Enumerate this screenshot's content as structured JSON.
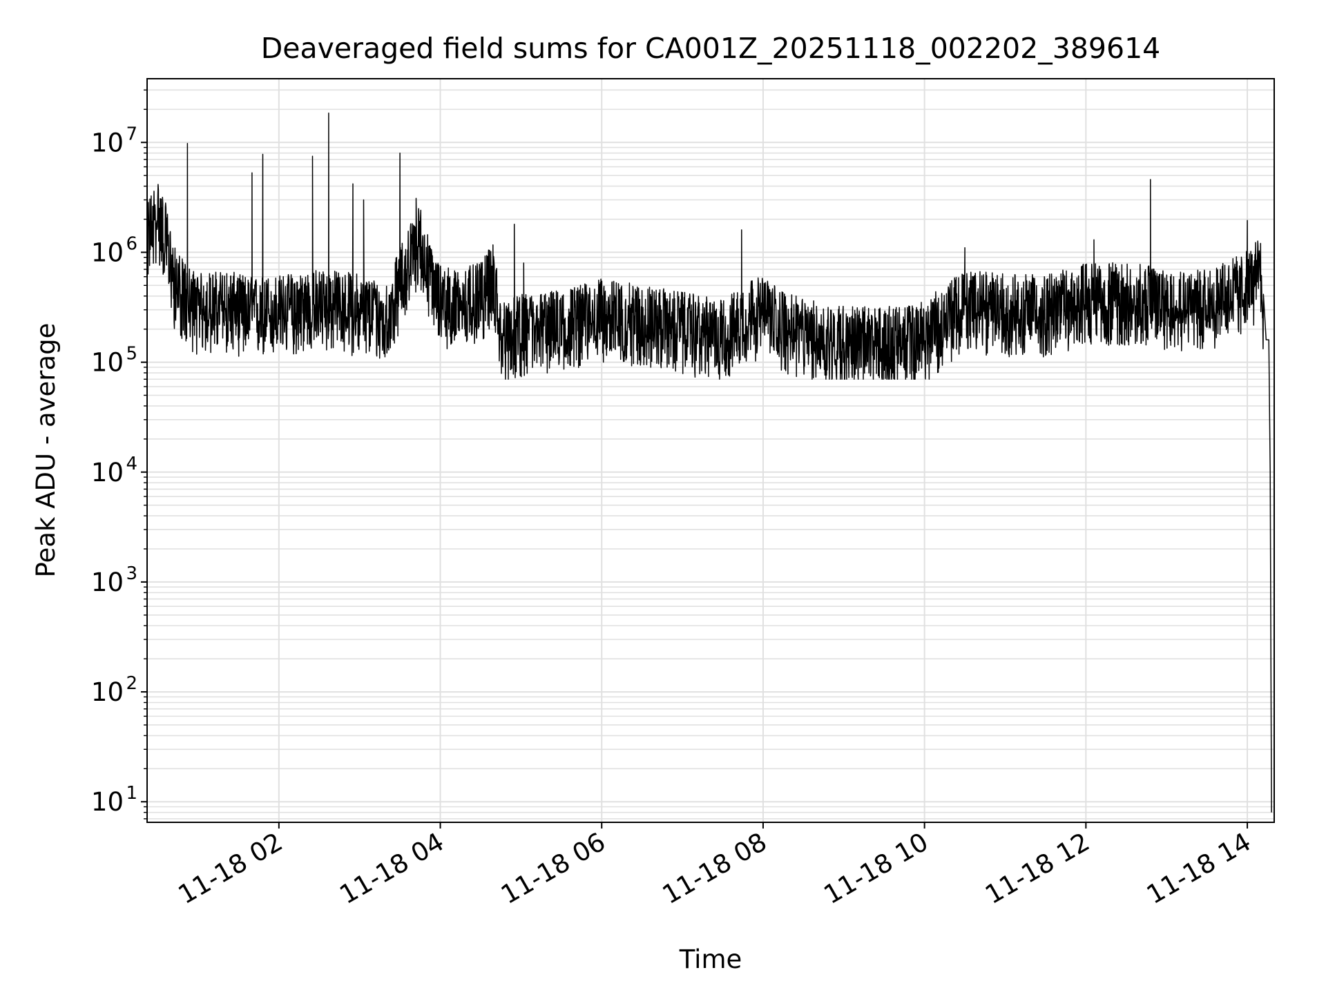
{
  "chart_data": {
    "type": "line",
    "title": "Deaveraged field sums for CA001Z_20251118_002202_389614",
    "xlabel": "Time",
    "ylabel": "Peak ADU - average",
    "yscale": "log",
    "ylim": [
      6.5,
      38000000
    ],
    "xlim": [
      "2025-11-18 00:22",
      "2025-11-18 14:20"
    ],
    "grid": true,
    "legend": "none",
    "line_color": "#000000",
    "grid_color": "#e0e0e0",
    "x_ticks": [
      {
        "value": "2025-11-18 02:00",
        "label": "11-18 02"
      },
      {
        "value": "2025-11-18 04:00",
        "label": "11-18 04"
      },
      {
        "value": "2025-11-18 06:00",
        "label": "11-18 06"
      },
      {
        "value": "2025-11-18 08:00",
        "label": "11-18 08"
      },
      {
        "value": "2025-11-18 10:00",
        "label": "11-18 10"
      },
      {
        "value": "2025-11-18 12:00",
        "label": "11-18 12"
      },
      {
        "value": "2025-11-18 14:00",
        "label": "11-18 14"
      }
    ],
    "y_ticks": [
      {
        "value": 10,
        "base": "10",
        "exp": "1"
      },
      {
        "value": 100,
        "base": "10",
        "exp": "2"
      },
      {
        "value": 1000,
        "base": "10",
        "exp": "3"
      },
      {
        "value": 10000,
        "base": "10",
        "exp": "4"
      },
      {
        "value": 100000,
        "base": "10",
        "exp": "5"
      },
      {
        "value": 1000000,
        "base": "10",
        "exp": "6"
      },
      {
        "value": 10000000,
        "base": "10",
        "exp": "7"
      }
    ],
    "series": [
      {
        "points": [
          [
            "2025-11-18 00:22",
            1300000
          ],
          [
            "2025-11-18 00:30",
            2000000
          ],
          [
            "2025-11-18 00:36",
            1200000
          ],
          [
            "2025-11-18 00:42",
            500000
          ],
          [
            "2025-11-18 00:50",
            350000
          ],
          [
            "2025-11-18 01:00",
            280000
          ],
          [
            "2025-11-18 01:20",
            300000
          ],
          [
            "2025-11-18 01:40",
            260000
          ],
          [
            "2025-11-18 02:00",
            270000
          ],
          [
            "2025-11-18 02:30",
            310000
          ],
          [
            "2025-11-18 03:00",
            280000
          ],
          [
            "2025-11-18 03:20",
            230000
          ],
          [
            "2025-11-18 03:35",
            700000
          ],
          [
            "2025-11-18 03:45",
            1200000
          ],
          [
            "2025-11-18 03:55",
            400000
          ],
          [
            "2025-11-18 04:10",
            300000
          ],
          [
            "2025-11-18 04:30",
            350000
          ],
          [
            "2025-11-18 04:40",
            550000
          ],
          [
            "2025-11-18 04:45",
            150000
          ],
          [
            "2025-11-18 05:00",
            180000
          ],
          [
            "2025-11-18 05:30",
            200000
          ],
          [
            "2025-11-18 06:00",
            250000
          ],
          [
            "2025-11-18 06:30",
            220000
          ],
          [
            "2025-11-18 07:00",
            190000
          ],
          [
            "2025-11-18 07:30",
            160000
          ],
          [
            "2025-11-18 07:50",
            250000
          ],
          [
            "2025-11-18 08:00",
            260000
          ],
          [
            "2025-11-18 08:20",
            180000
          ],
          [
            "2025-11-18 08:45",
            150000
          ],
          [
            "2025-11-18 09:15",
            140000
          ],
          [
            "2025-11-18 09:45",
            140000
          ],
          [
            "2025-11-18 10:00",
            160000
          ],
          [
            "2025-11-18 10:30",
            300000
          ],
          [
            "2025-11-18 11:00",
            280000
          ],
          [
            "2025-11-18 11:30",
            270000
          ],
          [
            "2025-11-18 12:00",
            350000
          ],
          [
            "2025-11-18 12:30",
            350000
          ],
          [
            "2025-11-18 13:00",
            320000
          ],
          [
            "2025-11-18 13:30",
            300000
          ],
          [
            "2025-11-18 14:00",
            450000
          ],
          [
            "2025-11-18 14:10",
            600000
          ],
          [
            "2025-11-18 14:12",
            280000
          ],
          [
            "2025-11-18 14:14",
            160000
          ],
          [
            "2025-11-18 14:16",
            160000
          ],
          [
            "2025-11-18 14:17",
            10000
          ],
          [
            "2025-11-18 14:18",
            8
          ]
        ],
        "spikes": [
          [
            "2025-11-18 00:52",
            9800000
          ],
          [
            "2025-11-18 01:40",
            5300000
          ],
          [
            "2025-11-18 01:48",
            7800000
          ],
          [
            "2025-11-18 02:25",
            7500000
          ],
          [
            "2025-11-18 02:37",
            18500000
          ],
          [
            "2025-11-18 02:55",
            4200000
          ],
          [
            "2025-11-18 03:03",
            3000000
          ],
          [
            "2025-11-18 03:30",
            8000000
          ],
          [
            "2025-11-18 03:42",
            3100000
          ],
          [
            "2025-11-18 04:55",
            1800000
          ],
          [
            "2025-11-18 05:02",
            800000
          ],
          [
            "2025-11-18 07:44",
            1600000
          ],
          [
            "2025-11-18 10:30",
            1100000
          ],
          [
            "2025-11-18 12:06",
            1300000
          ],
          [
            "2025-11-18 12:48",
            4600000
          ],
          [
            "2025-11-18 14:00",
            1950000
          ]
        ]
      }
    ]
  }
}
